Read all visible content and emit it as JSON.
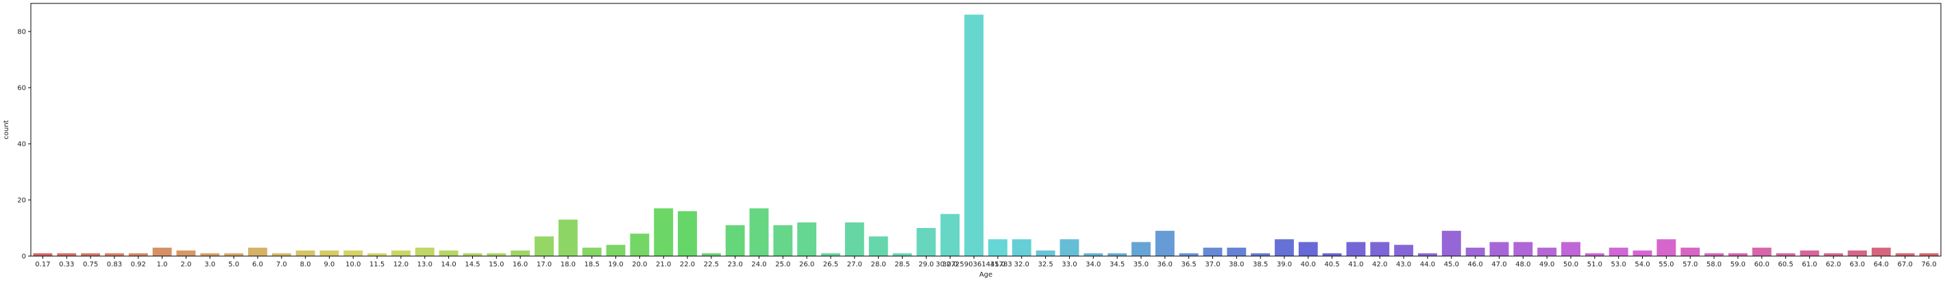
{
  "chart_data": {
    "type": "bar",
    "xlabel": "Age",
    "ylabel": "count",
    "ylim": [
      0,
      90
    ],
    "yticks": [
      0,
      20,
      40,
      60,
      80
    ],
    "grid": false,
    "categories": [
      "0.17",
      "0.33",
      "0.75",
      "0.83",
      "0.92",
      "1.0",
      "2.0",
      "3.0",
      "5.0",
      "6.0",
      "7.0",
      "8.0",
      "9.0",
      "10.0",
      "11.5",
      "12.0",
      "13.0",
      "14.0",
      "14.5",
      "15.0",
      "16.0",
      "17.0",
      "18.0",
      "18.5",
      "19.0",
      "20.0",
      "21.0",
      "22.0",
      "22.5",
      "23.0",
      "24.0",
      "25.0",
      "26.0",
      "26.5",
      "27.0",
      "28.0",
      "28.5",
      "29.0",
      "30.0",
      "30.272590361445783",
      "31.0",
      "32.0",
      "32.5",
      "33.0",
      "34.0",
      "34.5",
      "35.0",
      "36.0",
      "36.5",
      "37.0",
      "38.0",
      "38.5",
      "39.0",
      "40.0",
      "40.5",
      "41.0",
      "42.0",
      "43.0",
      "44.0",
      "45.0",
      "46.0",
      "47.0",
      "48.0",
      "49.0",
      "50.0",
      "51.0",
      "53.0",
      "54.0",
      "55.0",
      "57.0",
      "58.0",
      "59.0",
      "60.0",
      "60.5",
      "61.0",
      "62.0",
      "63.0",
      "64.0",
      "67.0",
      "76.0"
    ],
    "values": [
      1,
      1,
      1,
      1,
      1,
      3,
      2,
      1,
      1,
      3,
      1,
      2,
      2,
      2,
      1,
      2,
      3,
      2,
      1,
      1,
      2,
      7,
      13,
      3,
      4,
      8,
      17,
      16,
      1,
      11,
      17,
      11,
      12,
      1,
      12,
      7,
      1,
      10,
      15,
      86,
      6,
      6,
      2,
      6,
      1,
      1,
      5,
      9,
      1,
      3,
      3,
      1,
      6,
      5,
      1,
      5,
      5,
      4,
      1,
      9,
      3,
      5,
      5,
      3,
      5,
      1,
      3,
      2,
      6,
      3,
      1,
      1,
      3,
      1,
      2,
      1,
      2,
      3,
      1,
      1
    ]
  }
}
